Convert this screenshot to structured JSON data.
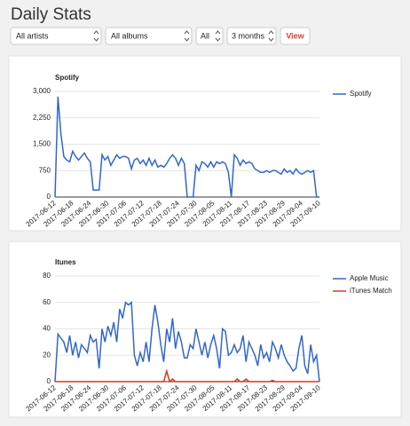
{
  "header": {
    "title": "Daily Stats"
  },
  "filters": {
    "artist": "All artists",
    "album": "All albums",
    "scope": "All",
    "period": "3 months",
    "button": "View"
  },
  "chart_data": [
    {
      "type": "line",
      "title": "Spotify",
      "categories": [
        "2017-06-12",
        null,
        null,
        null,
        null,
        null,
        "2017-06-18",
        null,
        null,
        null,
        null,
        null,
        "2017-06-24",
        null,
        null,
        null,
        null,
        null,
        "2017-06-30",
        null,
        null,
        null,
        null,
        null,
        "2017-07-06",
        null,
        null,
        null,
        null,
        null,
        "2017-07-12",
        null,
        null,
        null,
        null,
        null,
        "2017-07-18",
        null,
        null,
        null,
        null,
        null,
        "2017-07-24",
        null,
        null,
        null,
        null,
        null,
        "2017-07-30",
        null,
        null,
        null,
        null,
        null,
        "2017-08-05",
        null,
        null,
        null,
        null,
        null,
        "2017-08-11",
        null,
        null,
        null,
        null,
        null,
        "2017-08-17",
        null,
        null,
        null,
        null,
        null,
        "2017-08-23",
        null,
        null,
        null,
        null,
        null,
        "2017-08-29",
        null,
        null,
        null,
        null,
        null,
        "2017-09-04",
        null,
        null,
        null,
        null,
        null,
        "2017-09-10"
      ],
      "series": [
        {
          "name": "Spotify",
          "color": "#3366cc",
          "values": [
            0,
            2850,
            1800,
            1150,
            1050,
            1000,
            1300,
            1150,
            1050,
            1150,
            1250,
            1100,
            1000,
            200,
            200,
            200,
            1200,
            1050,
            1150,
            900,
            1050,
            1200,
            1100,
            1150,
            1150,
            1100,
            800,
            1050,
            1100,
            950,
            1050,
            900,
            1100,
            900,
            1050,
            850,
            900,
            850,
            950,
            1100,
            1200,
            1100,
            900,
            1100,
            950,
            0,
            0,
            0,
            900,
            750,
            1000,
            950,
            850,
            1000,
            850,
            1000,
            950,
            1000,
            950,
            700,
            0,
            1200,
            1100,
            900,
            1050,
            950,
            1000,
            950,
            800,
            750,
            700,
            700,
            750,
            700,
            750,
            750,
            700,
            650,
            800,
            700,
            750,
            650,
            800,
            700,
            650,
            700,
            750,
            700,
            750,
            0,
            0
          ]
        }
      ],
      "ylim": [
        0,
        3000
      ],
      "yticks": [
        0,
        750,
        {
          "value": 1500,
          "label": "1,500"
        },
        {
          "value": 2250,
          "label": "2,250"
        },
        {
          "value": 3000,
          "label": "3,000"
        }
      ],
      "grid": true,
      "legend": "right"
    },
    {
      "type": "line",
      "title": "Itunes",
      "categories": [
        "2017-06-12",
        null,
        null,
        null,
        null,
        null,
        "2017-06-18",
        null,
        null,
        null,
        null,
        null,
        "2017-06-24",
        null,
        null,
        null,
        null,
        null,
        "2017-06-30",
        null,
        null,
        null,
        null,
        null,
        "2017-07-06",
        null,
        null,
        null,
        null,
        null,
        "2017-07-12",
        null,
        null,
        null,
        null,
        null,
        "2017-07-18",
        null,
        null,
        null,
        null,
        null,
        "2017-07-24",
        null,
        null,
        null,
        null,
        null,
        "2017-07-30",
        null,
        null,
        null,
        null,
        null,
        "2017-08-05",
        null,
        null,
        null,
        null,
        null,
        "2017-08-11",
        null,
        null,
        null,
        null,
        null,
        "2017-08-17",
        null,
        null,
        null,
        null,
        null,
        "2017-08-23",
        null,
        null,
        null,
        null,
        null,
        "2017-08-29",
        null,
        null,
        null,
        null,
        null,
        "2017-09-04",
        null,
        null,
        null,
        null,
        null,
        "2017-09-10"
      ],
      "series": [
        {
          "name": "Apple Music",
          "color": "#3366cc",
          "values": [
            0,
            36,
            33,
            30,
            22,
            35,
            20,
            30,
            18,
            28,
            25,
            22,
            35,
            30,
            32,
            10,
            40,
            30,
            42,
            35,
            45,
            30,
            55,
            48,
            60,
            58,
            60,
            20,
            12,
            22,
            15,
            30,
            15,
            40,
            58,
            45,
            28,
            15,
            40,
            30,
            48,
            25,
            38,
            30,
            18,
            18,
            28,
            25,
            40,
            30,
            20,
            30,
            18,
            28,
            35,
            25,
            10,
            40,
            38,
            20,
            22,
            28,
            22,
            25,
            35,
            15,
            30,
            25,
            20,
            12,
            28,
            18,
            22,
            15,
            30,
            25,
            18,
            28,
            20,
            15,
            12,
            8,
            10,
            25,
            35,
            12,
            6,
            28,
            15,
            20,
            0
          ]
        },
        {
          "name": "iTunes Match",
          "color": "#dc3912",
          "values": [
            0,
            0,
            0,
            0,
            0,
            0,
            0,
            0,
            0,
            0,
            0,
            0,
            0,
            0,
            0,
            0,
            0,
            0,
            0,
            0,
            0,
            0,
            0,
            0,
            0,
            0,
            0,
            0,
            0,
            0,
            0,
            0,
            0,
            0,
            0,
            0,
            0,
            0,
            8,
            0,
            2,
            0,
            0,
            0,
            0,
            0,
            0,
            0,
            0,
            0,
            0,
            0,
            0,
            0,
            0,
            0,
            0,
            0,
            0,
            0,
            0,
            0,
            2,
            0,
            0,
            2,
            0,
            0,
            0,
            0,
            0,
            0,
            0,
            0,
            1,
            0,
            0,
            0,
            0,
            0,
            0,
            0,
            0,
            0,
            0,
            0,
            0,
            0,
            0,
            0,
            0
          ]
        }
      ],
      "ylim": [
        0,
        80
      ],
      "yticks": [
        0,
        20,
        40,
        60,
        80
      ],
      "grid": true,
      "legend": "right"
    }
  ]
}
